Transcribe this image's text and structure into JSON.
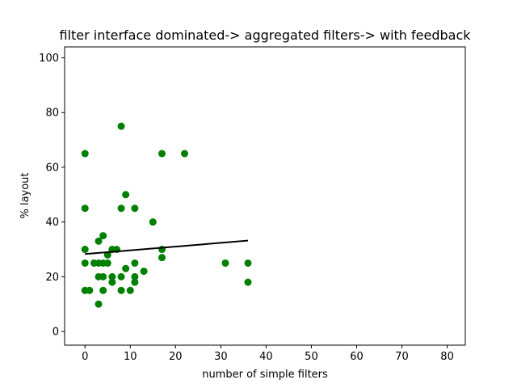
{
  "chart_data": {
    "type": "scatter",
    "title": "filter interface dominated-> aggregated filters-> with feedback",
    "xlabel": "number of simple filters",
    "ylabel": "% layout",
    "xlim": [
      -4.5,
      84
    ],
    "ylim": [
      -5,
      104
    ],
    "xticks": [
      0,
      10,
      20,
      30,
      40,
      50,
      60,
      70,
      80
    ],
    "yticks": [
      0,
      20,
      40,
      60,
      80,
      100
    ],
    "grid": false,
    "point_color": "#008000",
    "line_color": "#000000",
    "points": [
      {
        "x": 0,
        "y": 65
      },
      {
        "x": 0,
        "y": 45
      },
      {
        "x": 0,
        "y": 30
      },
      {
        "x": 0,
        "y": 25
      },
      {
        "x": 0,
        "y": 15
      },
      {
        "x": 1,
        "y": 15
      },
      {
        "x": 2,
        "y": 25
      },
      {
        "x": 3,
        "y": 33
      },
      {
        "x": 3,
        "y": 25
      },
      {
        "x": 3,
        "y": 20
      },
      {
        "x": 3,
        "y": 10
      },
      {
        "x": 4,
        "y": 35
      },
      {
        "x": 4,
        "y": 25
      },
      {
        "x": 4,
        "y": 20
      },
      {
        "x": 4,
        "y": 15
      },
      {
        "x": 5,
        "y": 28
      },
      {
        "x": 5,
        "y": 25
      },
      {
        "x": 6,
        "y": 30
      },
      {
        "x": 6,
        "y": 20
      },
      {
        "x": 6,
        "y": 18
      },
      {
        "x": 7,
        "y": 30
      },
      {
        "x": 8,
        "y": 75
      },
      {
        "x": 8,
        "y": 45
      },
      {
        "x": 8,
        "y": 20
      },
      {
        "x": 8,
        "y": 15
      },
      {
        "x": 9,
        "y": 50
      },
      {
        "x": 9,
        "y": 23
      },
      {
        "x": 10,
        "y": 15
      },
      {
        "x": 11,
        "y": 45
      },
      {
        "x": 11,
        "y": 25
      },
      {
        "x": 11,
        "y": 20
      },
      {
        "x": 11,
        "y": 18
      },
      {
        "x": 13,
        "y": 22
      },
      {
        "x": 15,
        "y": 40
      },
      {
        "x": 17,
        "y": 65
      },
      {
        "x": 17,
        "y": 30
      },
      {
        "x": 17,
        "y": 27
      },
      {
        "x": 22,
        "y": 65
      },
      {
        "x": 31,
        "y": 25
      },
      {
        "x": 36,
        "y": 25
      },
      {
        "x": 36,
        "y": 18
      }
    ],
    "trend_line": {
      "x": [
        0,
        36
      ],
      "y": [
        28.3,
        33.2
      ]
    }
  }
}
